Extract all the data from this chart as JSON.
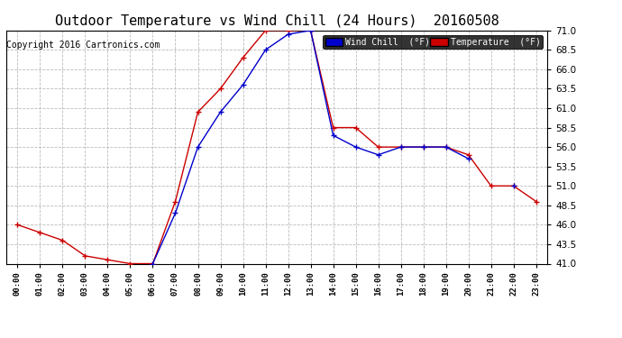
{
  "title": "Outdoor Temperature vs Wind Chill (24 Hours)  20160508",
  "copyright": "Copyright 2016 Cartronics.com",
  "legend_wind_chill": "Wind Chill  (°F)",
  "legend_temperature": "Temperature  (°F)",
  "x_labels": [
    "00:00",
    "01:00",
    "02:00",
    "03:00",
    "04:00",
    "05:00",
    "06:00",
    "07:00",
    "08:00",
    "09:00",
    "10:00",
    "11:00",
    "12:00",
    "13:00",
    "14:00",
    "15:00",
    "16:00",
    "17:00",
    "18:00",
    "19:00",
    "20:00",
    "21:00",
    "22:00",
    "23:00"
  ],
  "ylim": [
    41.0,
    71.0
  ],
  "yticks": [
    41.0,
    43.5,
    46.0,
    48.5,
    51.0,
    53.5,
    56.0,
    58.5,
    61.0,
    63.5,
    66.0,
    68.5,
    71.0
  ],
  "temperature": [
    46.0,
    45.0,
    44.0,
    42.0,
    41.5,
    41.0,
    41.0,
    49.0,
    60.5,
    63.5,
    67.5,
    71.0,
    71.0,
    71.0,
    58.5,
    58.5,
    56.0,
    56.0,
    56.0,
    56.0,
    55.0,
    51.0,
    51.0,
    49.0
  ],
  "wind_chill": [
    null,
    null,
    null,
    null,
    null,
    null,
    41.0,
    47.5,
    56.0,
    60.5,
    64.0,
    68.5,
    70.5,
    71.0,
    57.5,
    56.0,
    55.0,
    56.0,
    56.0,
    56.0,
    54.5,
    null,
    51.0,
    null
  ],
  "temp_color": "#cc0000",
  "wind_chill_color": "#0000cc",
  "background_color": "#ffffff",
  "grid_color": "#bbbbbb",
  "title_fontsize": 11,
  "copyright_fontsize": 7
}
